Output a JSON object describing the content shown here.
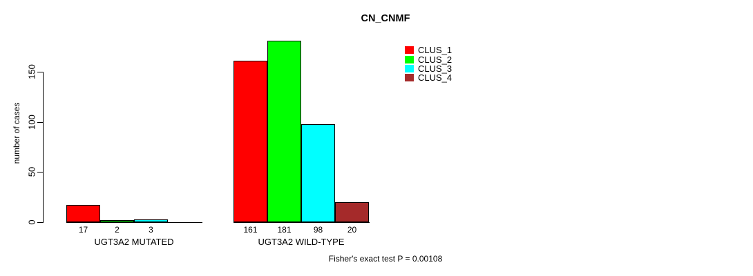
{
  "chart_data": {
    "type": "bar",
    "title": "CN_CNMF",
    "ylabel": "number of cases",
    "xlabel": "",
    "yticks": [
      0,
      50,
      100,
      150
    ],
    "ylim": [
      0,
      190
    ],
    "grid": false,
    "legend_position": "right",
    "series": [
      {
        "name": "CLUS_1",
        "color": "#FF0000"
      },
      {
        "name": "CLUS_2",
        "color": "#00FF00"
      },
      {
        "name": "CLUS_3",
        "color": "#00FFFF"
      },
      {
        "name": "CLUS_4",
        "color": "#A52A2A"
      }
    ],
    "groups": [
      {
        "label": "UGT3A2 MUTATED",
        "values": [
          17,
          2,
          3,
          0
        ]
      },
      {
        "label": "UGT3A2 WILD-TYPE",
        "values": [
          161,
          181,
          98,
          20
        ]
      }
    ],
    "annotation": "Fisher's exact test P = 0.00108"
  }
}
